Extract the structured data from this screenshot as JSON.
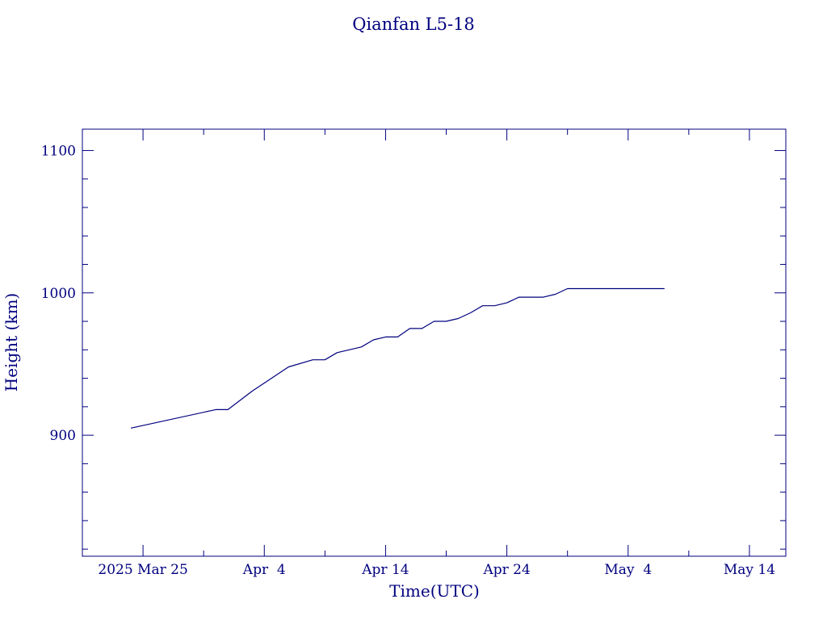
{
  "chart_data": {
    "type": "line",
    "title": "Qianfan L5-18",
    "xlabel": "Time(UTC)",
    "ylabel": "Height (km)",
    "color": "#00007f",
    "grid": false,
    "legend": "none",
    "xlim": [
      "2025-03-20",
      "2025-05-17"
    ],
    "ylim": [
      815,
      1115
    ],
    "x_ticks": [
      {
        "date": "2025-03-25",
        "label": "2025 Mar 25"
      },
      {
        "date": "2025-04-04",
        "label": "Apr  4"
      },
      {
        "date": "2025-04-14",
        "label": "Apr 14"
      },
      {
        "date": "2025-04-24",
        "label": "Apr 24"
      },
      {
        "date": "2025-05-04",
        "label": "May  4"
      },
      {
        "date": "2025-05-14",
        "label": "May 14"
      }
    ],
    "y_ticks": [
      {
        "value": 900,
        "label": "900"
      },
      {
        "value": 1000,
        "label": "1000"
      },
      {
        "value": 1100,
        "label": "1100"
      }
    ],
    "series": [
      {
        "x": [
          "2025-03-24",
          "2025-03-31",
          "2025-04-01",
          "2025-04-03",
          "2025-04-06",
          "2025-04-08",
          "2025-04-09",
          "2025-04-10",
          "2025-04-11",
          "2025-04-12",
          "2025-04-13",
          "2025-04-14",
          "2025-04-15",
          "2025-04-16",
          "2025-04-17",
          "2025-04-18",
          "2025-04-19",
          "2025-04-20",
          "2025-04-21",
          "2025-04-22",
          "2025-04-23",
          "2025-04-24",
          "2025-04-25",
          "2025-04-26",
          "2025-04-27",
          "2025-04-28",
          "2025-04-29",
          "2025-05-07"
        ],
        "y": [
          905,
          918,
          918,
          931,
          948,
          953,
          953,
          958,
          960,
          962,
          967,
          969,
          969,
          975,
          975,
          980,
          980,
          982,
          986,
          991,
          991,
          993,
          997,
          997,
          997,
          999,
          1003,
          1003
        ]
      }
    ]
  }
}
